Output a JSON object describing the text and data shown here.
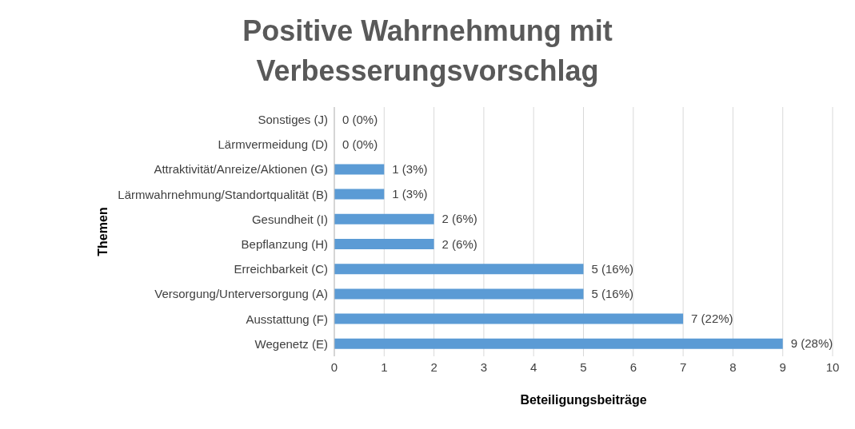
{
  "chart_data": {
    "type": "bar",
    "orientation": "horizontal",
    "title": "Positive Wahrnehmung mit Verbesserungsvorschlag",
    "xlabel": "Beteiligungsbeiträge",
    "ylabel": "Themen",
    "categories": [
      "Sonstiges (J)",
      "Lärmvermeidung (D)",
      "Attraktivität/Anreize/Aktionen (G)",
      "Lärmwahrnehmung/Standortqualität (B)",
      "Gesundheit (I)",
      "Bepflanzung (H)",
      "Erreichbarkeit (C)",
      "Versorgung/Unterversorgung (A)",
      "Ausstattung (F)",
      "Wegenetz (E)"
    ],
    "values": [
      0,
      0,
      1,
      1,
      2,
      2,
      5,
      5,
      7,
      9
    ],
    "value_labels": [
      "0 (0%)",
      "0 (0%)",
      "1 (3%)",
      "1 (3%)",
      "2 (6%)",
      "2 (6%)",
      "5 (16%)",
      "5 (16%)",
      "7 (22%)",
      "9 (28%)"
    ],
    "color": "#5b9bd5",
    "xlim": [
      0,
      10
    ],
    "xticks": [
      0,
      1,
      2,
      3,
      4,
      5,
      6,
      7,
      8,
      9,
      10
    ],
    "grid": "x"
  }
}
